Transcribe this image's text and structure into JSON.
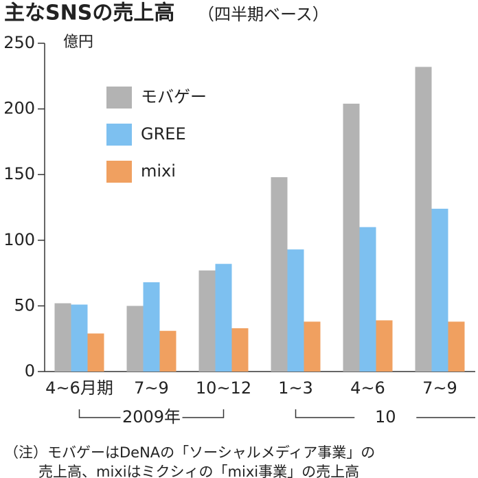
{
  "chart_data": {
    "type": "bar",
    "title": "主なSNSの売上高",
    "subtitle": "（四半期ベース）",
    "y_unit": "億円",
    "categories": [
      "4~6月期",
      "7~9",
      "10~12",
      "1~3",
      "4~6",
      "7~9"
    ],
    "groups": [
      {
        "label": "2009年",
        "from": 0,
        "to": 2
      },
      {
        "label": "10",
        "from": 3,
        "to": 5
      }
    ],
    "series": [
      {
        "name": "モバゲー",
        "color": "#b3b3b3",
        "values": [
          52,
          50,
          77,
          148,
          204,
          232
        ]
      },
      {
        "name": "GREE",
        "color": "#7dc0f0",
        "values": [
          51,
          68,
          82,
          93,
          110,
          124
        ]
      },
      {
        "name": "mixi",
        "color": "#f0a060",
        "values": [
          29,
          31,
          33,
          38,
          39,
          38
        ]
      }
    ],
    "ylim": [
      0,
      250
    ],
    "yticks": [
      0,
      50,
      100,
      150,
      200,
      250
    ],
    "notes": [
      "（注）モバゲーはDeNAの「ソーシャルメディア事業」の",
      "売上高、mixiはミクシィの「mixi事業」の売上高"
    ]
  }
}
